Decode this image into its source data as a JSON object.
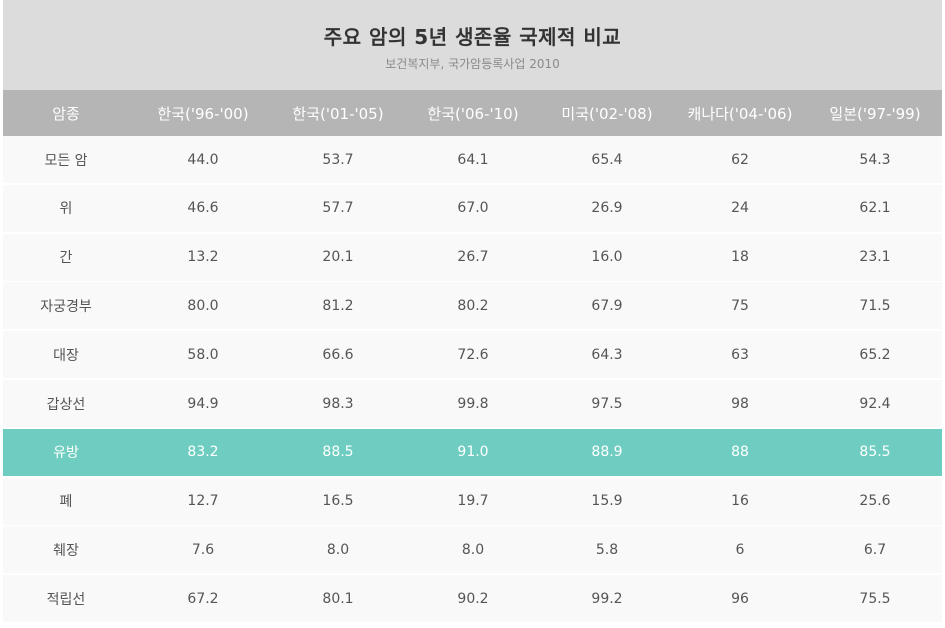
{
  "chart_data": {
    "type": "table",
    "title": "주요 암의 5년 생존율 국제적 비교",
    "subtitle": "보건복지부, 국가암등록사업 2010",
    "columns": [
      "암종",
      "한국('96-'00)",
      "한국('01-'05)",
      "한국('06-'10)",
      "미국('02-'08)",
      "캐나다('04-'06)",
      "일본('97-'99)"
    ],
    "highlight_row": "유방",
    "highlight_color": "#6ecdc0",
    "rows": [
      {
        "label": "모든 암",
        "values": [
          "44.0",
          "53.7",
          "64.1",
          "65.4",
          "62",
          "54.3"
        ]
      },
      {
        "label": "위",
        "values": [
          "46.6",
          "57.7",
          "67.0",
          "26.9",
          "24",
          "62.1"
        ]
      },
      {
        "label": "간",
        "values": [
          "13.2",
          "20.1",
          "26.7",
          "16.0",
          "18",
          "23.1"
        ]
      },
      {
        "label": "자궁경부",
        "values": [
          "80.0",
          "81.2",
          "80.2",
          "67.9",
          "75",
          "71.5"
        ]
      },
      {
        "label": "대장",
        "values": [
          "58.0",
          "66.6",
          "72.6",
          "64.3",
          "63",
          "65.2"
        ]
      },
      {
        "label": "갑상선",
        "values": [
          "94.9",
          "98.3",
          "99.8",
          "97.5",
          "98",
          "92.4"
        ]
      },
      {
        "label": "유방",
        "values": [
          "83.2",
          "88.5",
          "91.0",
          "88.9",
          "88",
          "85.5"
        ]
      },
      {
        "label": "폐",
        "values": [
          "12.7",
          "16.5",
          "19.7",
          "15.9",
          "16",
          "25.6"
        ]
      },
      {
        "label": "췌장",
        "values": [
          "7.6",
          "8.0",
          "8.0",
          "5.8",
          "6",
          "6.7"
        ]
      },
      {
        "label": "적립선",
        "values": [
          "67.2",
          "80.1",
          "90.2",
          "99.2",
          "96",
          "75.5"
        ]
      }
    ]
  }
}
